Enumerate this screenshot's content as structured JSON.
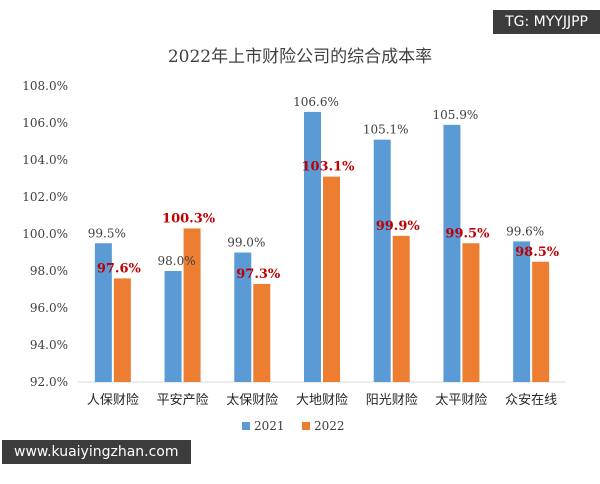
{
  "watermark": {
    "tag": "TG: MYYJJPP",
    "url": "www.kuaiyingzhan.com"
  },
  "chart_data": {
    "type": "bar",
    "title": "2022年上市财险公司的综合成本率",
    "categories": [
      "人保财险",
      "平安产险",
      "太保财险",
      "大地财险",
      "阳光财险",
      "太平财险",
      "众安在线"
    ],
    "series": [
      {
        "name": "2021",
        "color": "#5b9bd5",
        "values": [
          99.5,
          98.0,
          99.0,
          106.6,
          105.1,
          105.9,
          99.6
        ],
        "labels": [
          "99.5%",
          "98.0%",
          "99.0%",
          "106.6%",
          "105.1%",
          "105.9%",
          "99.6%"
        ]
      },
      {
        "name": "2022",
        "color": "#ed7d31",
        "values": [
          97.6,
          100.3,
          97.3,
          103.1,
          99.9,
          99.5,
          98.5
        ],
        "labels": [
          "97.6%",
          "100.3%",
          "97.3%",
          "103.1%",
          "99.9%",
          "99.5%",
          "98.5%"
        ]
      }
    ],
    "ylim": [
      92.0,
      108.0
    ],
    "yticks": [
      "92.0%",
      "94.0%",
      "96.0%",
      "98.0%",
      "100.0%",
      "102.0%",
      "104.0%",
      "106.0%",
      "108.0%"
    ],
    "grid": false,
    "legend": "bottom"
  }
}
